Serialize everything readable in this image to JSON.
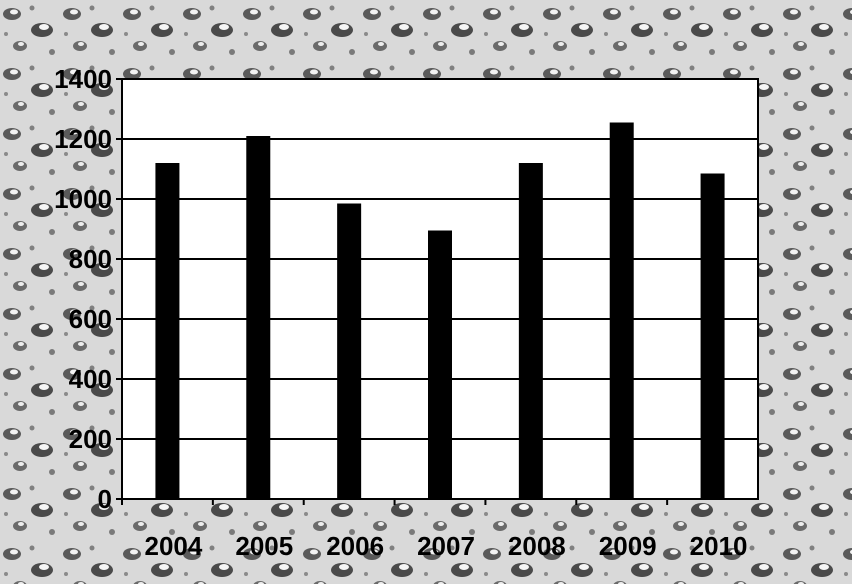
{
  "chart_data": {
    "type": "bar",
    "categories": [
      "2004",
      "2005",
      "2006",
      "2007",
      "2008",
      "2009",
      "2010"
    ],
    "values": [
      1120,
      1210,
      985,
      895,
      1120,
      1255,
      1085
    ],
    "ylim": [
      0,
      1400
    ],
    "yticks": [
      "0",
      "200",
      "400",
      "600",
      "800",
      "1000",
      "1200",
      "1400"
    ],
    "title": "",
    "xlabel": "",
    "ylabel": "",
    "grid": true,
    "legend": "none",
    "bar_color": "#000000",
    "plot_background": "#ffffff",
    "page_background": "textured grey water-drop pattern"
  }
}
